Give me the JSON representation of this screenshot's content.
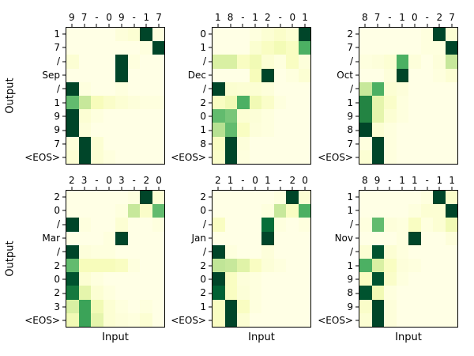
{
  "figure": {
    "xlabel": "Input",
    "ylabel": "Output",
    "background_color": "#ffffff",
    "text_color": "#000000",
    "colormap": {
      "name": "YlGn",
      "stops": [
        [
          0.0,
          "#ffffe5"
        ],
        [
          0.125,
          "#f7fcb9"
        ],
        [
          0.25,
          "#d9f0a3"
        ],
        [
          0.375,
          "#addd8e"
        ],
        [
          0.5,
          "#78c679"
        ],
        [
          0.625,
          "#41ab5d"
        ],
        [
          0.75,
          "#238443"
        ],
        [
          0.875,
          "#006837"
        ],
        [
          1.0,
          "#004529"
        ]
      ]
    }
  },
  "chart_data": [
    {
      "type": "heatmap",
      "position": "top-left",
      "input_tokens": [
        "9",
        "7",
        "-",
        "0",
        "9",
        "-",
        "1",
        "7"
      ],
      "output_tokens": [
        "1",
        "7",
        "/",
        "Sep",
        "/",
        "1",
        "9",
        "9",
        "7",
        "<EOS>"
      ],
      "value_range": [
        0,
        1
      ],
      "values": [
        [
          0,
          0,
          0,
          0,
          0.03,
          0.05,
          1,
          0.02
        ],
        [
          0,
          0,
          0,
          0,
          0,
          0,
          0.02,
          1
        ],
        [
          0.05,
          0,
          0,
          0,
          1,
          0.02,
          0,
          0
        ],
        [
          0,
          0,
          0,
          0,
          1,
          0,
          0,
          0
        ],
        [
          1,
          0.02,
          0,
          0,
          0.02,
          0,
          0,
          0
        ],
        [
          0.55,
          0.3,
          0.12,
          0.08,
          0.05,
          0.03,
          0.02,
          0.02
        ],
        [
          1,
          0.05,
          0.02,
          0,
          0,
          0,
          0,
          0
        ],
        [
          1,
          0.03,
          0,
          0,
          0,
          0,
          0,
          0
        ],
        [
          0.03,
          1,
          0.05,
          0,
          0,
          0,
          0,
          0
        ],
        [
          0.05,
          1,
          0.05,
          0.02,
          0,
          0,
          0,
          0
        ]
      ]
    },
    {
      "type": "heatmap",
      "position": "top-middle",
      "input_tokens": [
        "1",
        "8",
        "-",
        "1",
        "2",
        "-",
        "0",
        "1"
      ],
      "output_tokens": [
        "0",
        "1",
        "/",
        "Dec",
        "/",
        "2",
        "0",
        "1",
        "8",
        "<EOS>"
      ],
      "value_range": [
        0,
        1
      ],
      "values": [
        [
          0,
          0,
          0,
          0.02,
          0.05,
          0.08,
          0.05,
          1
        ],
        [
          0,
          0,
          0,
          0.06,
          0.1,
          0.14,
          0.1,
          0.6
        ],
        [
          0.25,
          0.25,
          0.1,
          0.15,
          0.05,
          0.02,
          0.1,
          0.03
        ],
        [
          0,
          0,
          0,
          0.12,
          1,
          0,
          0.02,
          0.05
        ],
        [
          1,
          0.06,
          0.05,
          0.05,
          0.03,
          0,
          0,
          0
        ],
        [
          0.1,
          0.15,
          0.6,
          0.15,
          0.08,
          0.02,
          0,
          0
        ],
        [
          0.55,
          0.5,
          0.05,
          0.04,
          0.02,
          0,
          0,
          0
        ],
        [
          0.35,
          0.55,
          0.1,
          0.03,
          0.02,
          0,
          0,
          0
        ],
        [
          0.1,
          1,
          0.03,
          0,
          0,
          0,
          0,
          0
        ],
        [
          0.08,
          1,
          0.02,
          0,
          0,
          0,
          0,
          0
        ]
      ]
    },
    {
      "type": "heatmap",
      "position": "top-right",
      "input_tokens": [
        "8",
        "7",
        "-",
        "1",
        "0",
        "-",
        "2",
        "7"
      ],
      "output_tokens": [
        "2",
        "7",
        "/",
        "Oct",
        "/",
        "1",
        "9",
        "8",
        "7",
        "<EOS>"
      ],
      "value_range": [
        0,
        1
      ],
      "values": [
        [
          0,
          0,
          0,
          0,
          0,
          0.02,
          1,
          0.05
        ],
        [
          0,
          0,
          0,
          0,
          0,
          0.02,
          0.02,
          1
        ],
        [
          0.02,
          0.03,
          0.05,
          0.6,
          0.03,
          0,
          0.03,
          0.3
        ],
        [
          0,
          0,
          0.03,
          1,
          0,
          0,
          0.02,
          0.05
        ],
        [
          0.3,
          0.6,
          0.05,
          0.03,
          0,
          0,
          0,
          0
        ],
        [
          0.75,
          0.2,
          0.08,
          0.02,
          0,
          0,
          0,
          0
        ],
        [
          0.75,
          0.2,
          0.05,
          0.02,
          0,
          0,
          0,
          0
        ],
        [
          1,
          0.05,
          0.02,
          0,
          0,
          0,
          0,
          0
        ],
        [
          0.02,
          1,
          0.02,
          0,
          0,
          0,
          0,
          0
        ],
        [
          0.05,
          1,
          0.02,
          0,
          0,
          0,
          0,
          0
        ]
      ]
    },
    {
      "type": "heatmap",
      "position": "bottom-left",
      "input_tokens": [
        "2",
        "3",
        "-",
        "0",
        "3",
        "-",
        "2",
        "0"
      ],
      "output_tokens": [
        "2",
        "0",
        "/",
        "Mar",
        "/",
        "2",
        "0",
        "2",
        "3",
        "<EOS>"
      ],
      "value_range": [
        0,
        1
      ],
      "values": [
        [
          0,
          0,
          0,
          0,
          0,
          0.02,
          1,
          0.05
        ],
        [
          0,
          0,
          0,
          0,
          0.02,
          0.3,
          0.08,
          0.55
        ],
        [
          1,
          0.02,
          0,
          0,
          0.05,
          0,
          0,
          0.02
        ],
        [
          0,
          0,
          0,
          0.02,
          1,
          0,
          0,
          0
        ],
        [
          1,
          0.03,
          0.02,
          0.02,
          0,
          0,
          0,
          0
        ],
        [
          0.55,
          0.12,
          0.12,
          0.12,
          0.1,
          0.02,
          0,
          0
        ],
        [
          0.95,
          0.05,
          0.02,
          0,
          0,
          0,
          0,
          0
        ],
        [
          0.8,
          0.2,
          0.05,
          0.02,
          0,
          0,
          0,
          0
        ],
        [
          0.25,
          0.65,
          0.15,
          0.05,
          0.02,
          0,
          0.02,
          0
        ],
        [
          0.15,
          0.65,
          0.2,
          0.05,
          0.03,
          0.02,
          0.05,
          0
        ]
      ]
    },
    {
      "type": "heatmap",
      "position": "bottom-middle",
      "input_tokens": [
        "2",
        "1",
        "-",
        "0",
        "1",
        "-",
        "2",
        "0"
      ],
      "output_tokens": [
        "2",
        "0",
        "/",
        "Jan",
        "/",
        "2",
        "0",
        "2",
        "1",
        "<EOS>"
      ],
      "value_range": [
        0,
        1
      ],
      "values": [
        [
          0,
          0,
          0,
          0,
          0,
          0.02,
          1,
          0.05
        ],
        [
          0,
          0,
          0,
          0,
          0.02,
          0.3,
          0.1,
          0.6
        ],
        [
          0.1,
          0,
          0,
          0,
          0.85,
          0.02,
          0,
          0.02
        ],
        [
          0,
          0,
          0,
          0,
          1,
          0,
          0,
          0
        ],
        [
          1,
          0.02,
          0,
          0,
          0.03,
          0,
          0,
          0
        ],
        [
          0.32,
          0.3,
          0.22,
          0.1,
          0.04,
          0.02,
          0,
          0
        ],
        [
          1,
          0.1,
          0.03,
          0.02,
          0,
          0,
          0,
          0
        ],
        [
          0.9,
          0.1,
          0.04,
          0.02,
          0,
          0,
          0,
          0
        ],
        [
          0.1,
          1,
          0.1,
          0.02,
          0,
          0,
          0,
          0
        ],
        [
          0.1,
          1,
          0.05,
          0,
          0,
          0,
          0,
          0
        ]
      ]
    },
    {
      "type": "heatmap",
      "position": "bottom-right",
      "input_tokens": [
        "8",
        "9",
        "-",
        "1",
        "1",
        "-",
        "1",
        "1"
      ],
      "output_tokens": [
        "1",
        "1",
        "/",
        "Nov",
        "/",
        "1",
        "9",
        "8",
        "9",
        "<EOS>"
      ],
      "value_range": [
        0,
        1
      ],
      "values": [
        [
          0,
          0,
          0,
          0,
          0,
          0.02,
          1,
          0.08
        ],
        [
          0,
          0,
          0,
          0,
          0.02,
          0.05,
          0.05,
          1
        ],
        [
          0.02,
          0.55,
          0.03,
          0.02,
          0.1,
          0.02,
          0.05,
          0.15
        ],
        [
          0,
          0,
          0,
          0.02,
          1,
          0,
          0,
          0.03
        ],
        [
          0.05,
          0.95,
          0.05,
          0.02,
          0,
          0,
          0,
          0
        ],
        [
          0.6,
          0.25,
          0.1,
          0.03,
          0.02,
          0,
          0,
          0
        ],
        [
          0.1,
          0.95,
          0.08,
          0.02,
          0,
          0,
          0,
          0
        ],
        [
          0.95,
          0.15,
          0.02,
          0,
          0,
          0,
          0,
          0
        ],
        [
          0.08,
          1,
          0.03,
          0,
          0,
          0,
          0,
          0
        ],
        [
          0.05,
          1,
          0.03,
          0,
          0,
          0,
          0,
          0
        ]
      ]
    }
  ]
}
